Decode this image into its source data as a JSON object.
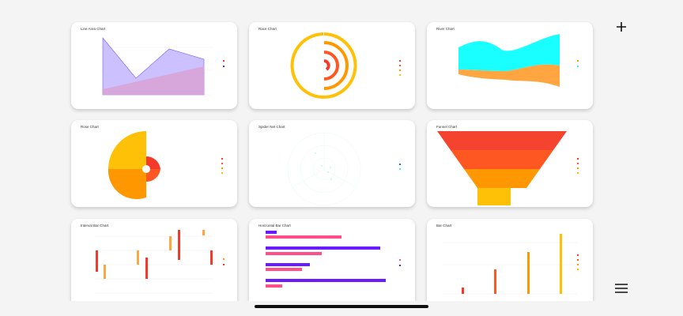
{
  "header": {
    "add_icon": "plus-icon"
  },
  "footer": {
    "menu_icon": "hamburger-menu-icon"
  },
  "colors": {
    "red": "#f4382a",
    "orange": "#ff9800",
    "amber": "#ffc107",
    "deep_orange": "#ff5722",
    "purple": "#6a1bff",
    "pink": "#ff4f8b",
    "cyan": "#19ffff",
    "lavender": "#c9bcff"
  },
  "cards": [
    {
      "title": "Line Area Chart"
    },
    {
      "title": "Race Chart"
    },
    {
      "title": "River Chart"
    },
    {
      "title": "Rose Chart"
    },
    {
      "title": "Spider Net Chart"
    },
    {
      "title": "Funnel Chart"
    },
    {
      "title": "Interval Bar Chart"
    },
    {
      "title": "Horizontal Bar Chart"
    },
    {
      "title": "Bar Chart"
    }
  ]
}
